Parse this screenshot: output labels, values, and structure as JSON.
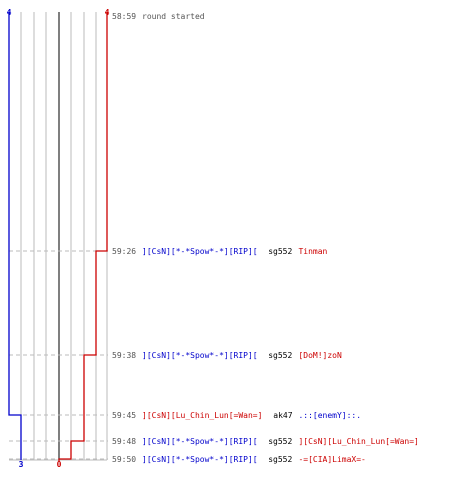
{
  "teams": {
    "blue": {
      "color": "#0000cc",
      "start_score": "4",
      "end_score": "3"
    },
    "red": {
      "color": "#cc0000",
      "start_score": "4",
      "end_score": "0"
    }
  },
  "colors": {
    "time": "#555555",
    "grid": "#bbbbbb",
    "center": "#555555",
    "neutral": "#000000"
  },
  "round_start": {
    "time": "58:59",
    "text": "round started"
  },
  "events": [
    {
      "time": "59:26",
      "killer": "][CsN][*-*Spow*-*][RIP][",
      "killer_team": "blue",
      "weapon": "sg552",
      "victim": "Tinman",
      "victim_team": "red"
    },
    {
      "time": "59:38",
      "killer": "][CsN][*-*Spow*-*][RIP][",
      "killer_team": "blue",
      "weapon": "sg552",
      "victim": "[DoM!]zoN",
      "victim_team": "red"
    },
    {
      "time": "59:45",
      "killer": "][CsN][Lu_Chin_Lun[=Wan=]",
      "killer_team": "red",
      "weapon": "ak47",
      "victim": ".::[enemY]::.",
      "victim_team": "blue"
    },
    {
      "time": "59:48",
      "killer": "][CsN][*-*Spow*-*][RIP][",
      "killer_team": "blue",
      "weapon": "sg552",
      "victim": "][CsN][Lu_Chin_Lun[=Wan=]",
      "victim_team": "red"
    },
    {
      "time": "59:50",
      "killer": "][CsN][*-*Spow*-*][RIP][",
      "killer_team": "blue",
      "weapon": "sg552",
      "victim": "-=[CIA]LimaX=-",
      "victim_team": "red"
    }
  ]
}
